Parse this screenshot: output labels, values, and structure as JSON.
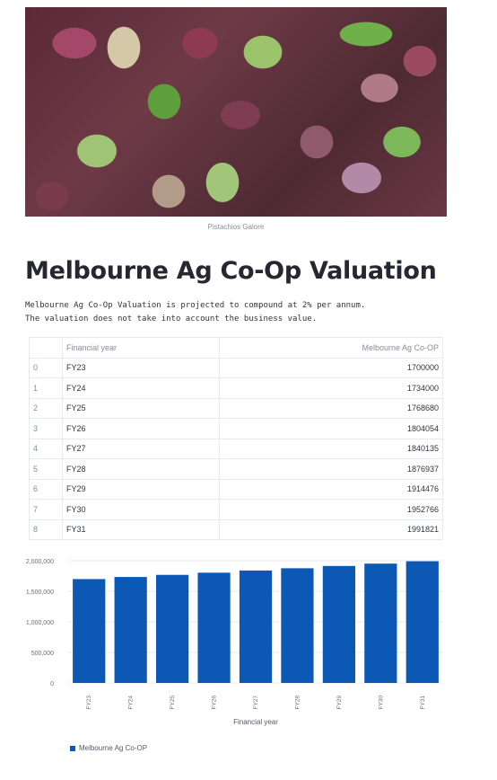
{
  "image": {
    "caption": "Pistachios Galore"
  },
  "page": {
    "title": "Melbourne Ag Co-Op Valuation",
    "description_lines": [
      "Melbourne Ag Co-Op Valuation is projected to compound at 2% per annum.",
      "The valuation does not take into account the business value."
    ]
  },
  "table": {
    "columns": [
      "",
      "Financial year",
      "Melbourne Ag Co-OP"
    ],
    "rows": [
      {
        "index": "0",
        "year": "FY23",
        "value": "1700000"
      },
      {
        "index": "1",
        "year": "FY24",
        "value": "1734000"
      },
      {
        "index": "2",
        "year": "FY25",
        "value": "1768680"
      },
      {
        "index": "3",
        "year": "FY26",
        "value": "1804054"
      },
      {
        "index": "4",
        "year": "FY27",
        "value": "1840135"
      },
      {
        "index": "5",
        "year": "FY28",
        "value": "1876937"
      },
      {
        "index": "6",
        "year": "FY29",
        "value": "1914476"
      },
      {
        "index": "7",
        "year": "FY30",
        "value": "1952766"
      },
      {
        "index": "8",
        "year": "FY31",
        "value": "1991821"
      }
    ]
  },
  "chart_data": {
    "type": "bar",
    "categories": [
      "FY23",
      "FY24",
      "FY25",
      "FY26",
      "FY27",
      "FY28",
      "FY29",
      "FY30",
      "FY31"
    ],
    "series": [
      {
        "name": "Melbourne Ag Co-OP",
        "values": [
          1700000,
          1734000,
          1768680,
          1804054,
          1840135,
          1876937,
          1914476,
          1952766,
          1991821
        ]
      }
    ],
    "xlabel": "Financial year",
    "ylabel": "",
    "ylim": [
      0,
      2000000
    ],
    "yticks": [
      "0",
      "500,000",
      "1,000,000",
      "1,500,000",
      "2,000,000"
    ],
    "grid": true,
    "legend": "bottom-left",
    "colors": {
      "bar": "#0b59b4"
    }
  },
  "legend": {
    "label": "Melbourne Ag Co-OP"
  }
}
